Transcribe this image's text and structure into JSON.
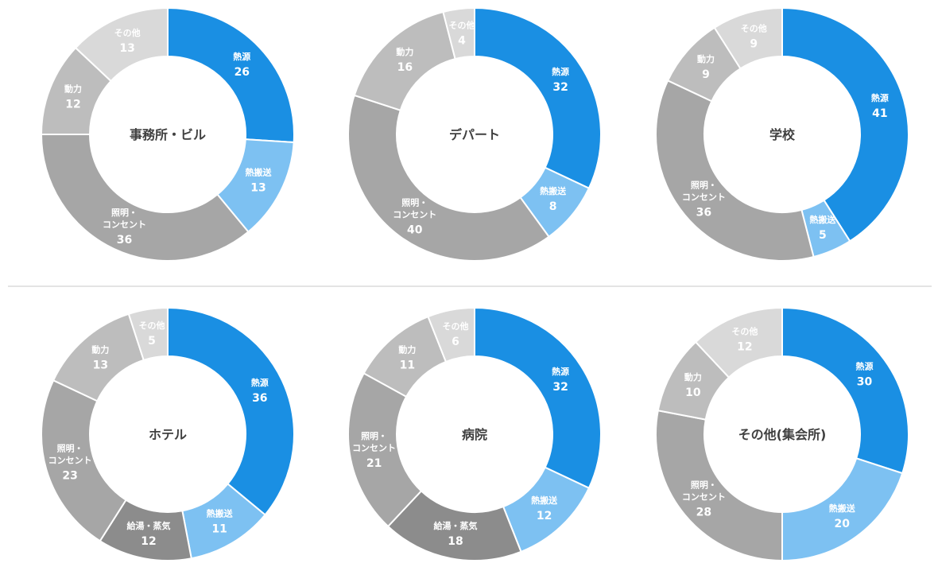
{
  "colors": {
    "heat_source": "#1a8fe3",
    "heat_transfer": "#7dc1f2",
    "lighting": "#a6a6a6",
    "power": "#bdbdbd",
    "other": "#d9d9d9",
    "hot_water": "#8c8c8c",
    "label_on_dark": "#ffffff",
    "label_on_light": "#ffffff"
  },
  "chart_data": [
    {
      "type": "pie",
      "title": "事務所・ビル",
      "slices": [
        {
          "name": "熱源",
          "value": 26,
          "color": "heat_source"
        },
        {
          "name": "熱搬送",
          "value": 13,
          "color": "heat_transfer"
        },
        {
          "name": "照明・\nコンセント",
          "value": 36,
          "color": "lighting"
        },
        {
          "name": "動力",
          "value": 12,
          "color": "power"
        },
        {
          "name": "その他",
          "value": 13,
          "color": "other"
        }
      ]
    },
    {
      "type": "pie",
      "title": "デパート",
      "slices": [
        {
          "name": "熱源",
          "value": 32,
          "color": "heat_source"
        },
        {
          "name": "熱搬送",
          "value": 8,
          "color": "heat_transfer"
        },
        {
          "name": "照明・\nコンセント",
          "value": 40,
          "color": "lighting"
        },
        {
          "name": "動力",
          "value": 16,
          "color": "power"
        },
        {
          "name": "その他",
          "value": 4,
          "color": "other"
        }
      ]
    },
    {
      "type": "pie",
      "title": "学校",
      "slices": [
        {
          "name": "熱源",
          "value": 41,
          "color": "heat_source"
        },
        {
          "name": "熱搬送",
          "value": 5,
          "color": "heat_transfer"
        },
        {
          "name": "照明・\nコンセント",
          "value": 36,
          "color": "lighting"
        },
        {
          "name": "動力",
          "value": 9,
          "color": "power"
        },
        {
          "name": "その他",
          "value": 9,
          "color": "other"
        }
      ]
    },
    {
      "type": "pie",
      "title": "ホテル",
      "slices": [
        {
          "name": "熱源",
          "value": 36,
          "color": "heat_source"
        },
        {
          "name": "熱搬送",
          "value": 11,
          "color": "heat_transfer"
        },
        {
          "name": "給湯・蒸気",
          "value": 12,
          "color": "hot_water"
        },
        {
          "name": "照明・\nコンセント",
          "value": 23,
          "color": "lighting"
        },
        {
          "name": "動力",
          "value": 13,
          "color": "power"
        },
        {
          "name": "その他",
          "value": 5,
          "color": "other"
        }
      ]
    },
    {
      "type": "pie",
      "title": "病院",
      "slices": [
        {
          "name": "熱源",
          "value": 32,
          "color": "heat_source"
        },
        {
          "name": "熱搬送",
          "value": 12,
          "color": "heat_transfer"
        },
        {
          "name": "給湯・蒸気",
          "value": 18,
          "color": "hot_water"
        },
        {
          "name": "照明・\nコンセント",
          "value": 21,
          "color": "lighting"
        },
        {
          "name": "動力",
          "value": 11,
          "color": "power"
        },
        {
          "name": "その他",
          "value": 6,
          "color": "other"
        }
      ]
    },
    {
      "type": "pie",
      "title": "その他(集会所)",
      "slices": [
        {
          "name": "熱源",
          "value": 30,
          "color": "heat_source"
        },
        {
          "name": "熱搬送",
          "value": 20,
          "color": "heat_transfer"
        },
        {
          "name": "照明・\nコンセント",
          "value": 28,
          "color": "lighting"
        },
        {
          "name": "動力",
          "value": 10,
          "color": "power"
        },
        {
          "name": "その他",
          "value": 12,
          "color": "other"
        }
      ]
    }
  ]
}
